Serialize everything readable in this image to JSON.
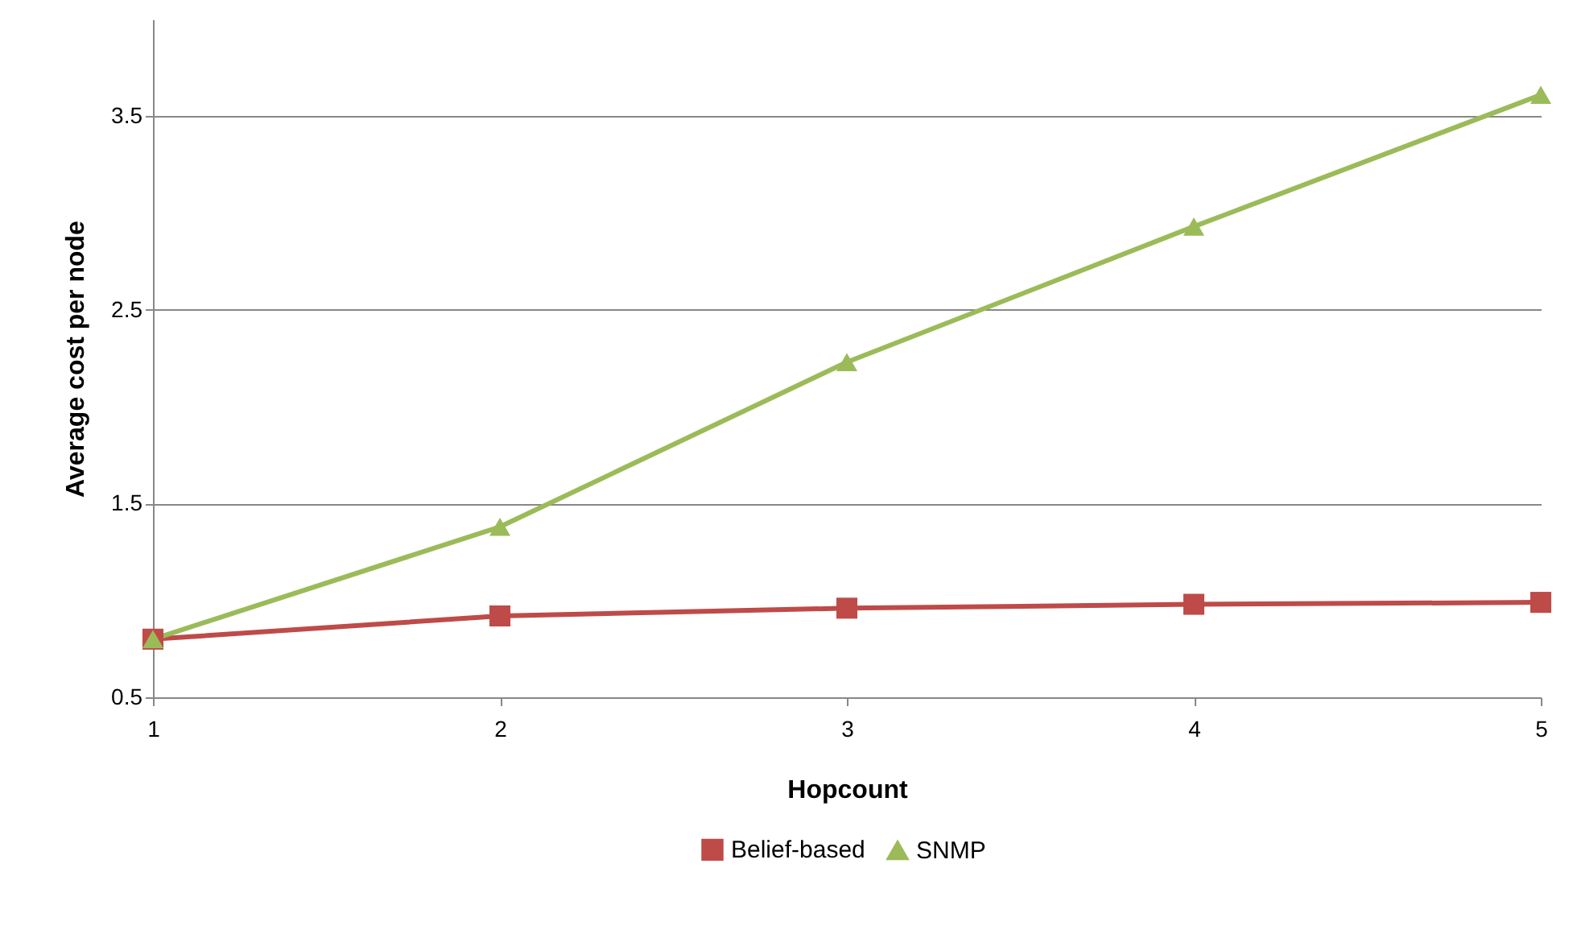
{
  "chart_data": {
    "type": "line",
    "xlabel": "Hopcount",
    "ylabel": "Average cost per node",
    "x": [
      1,
      2,
      3,
      4,
      5
    ],
    "xlim": [
      1,
      5
    ],
    "xticks": [
      1,
      2,
      3,
      4,
      5
    ],
    "ylim": [
      0.5,
      4.0
    ],
    "yticks": [
      0.5,
      1.5,
      2.5,
      3.5
    ],
    "grid": "y",
    "legend": "bottom",
    "series": [
      {
        "name": "Belief-based",
        "color": "#be4b48",
        "marker": "square",
        "values": [
          0.8,
          0.92,
          0.96,
          0.98,
          0.99
        ]
      },
      {
        "name": "SNMP",
        "color": "#9bbb59",
        "marker": "triangle",
        "values": [
          0.8,
          1.38,
          2.23,
          2.93,
          3.61
        ]
      }
    ]
  }
}
